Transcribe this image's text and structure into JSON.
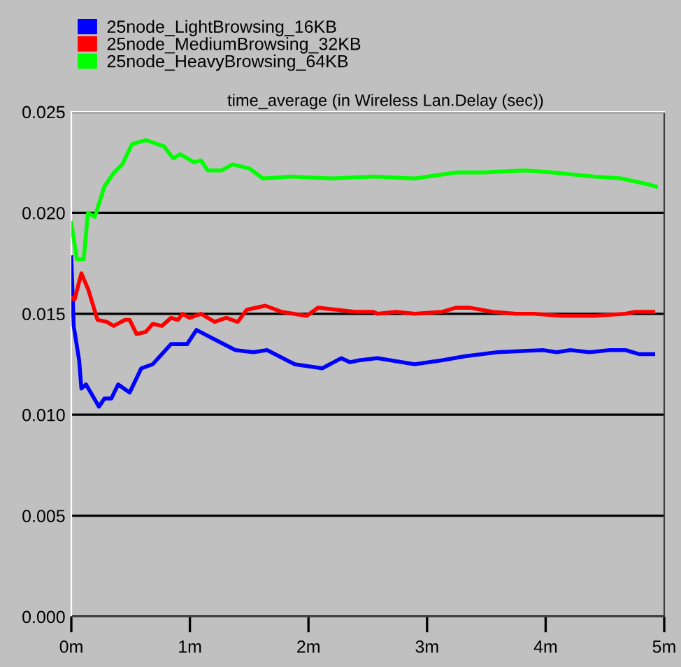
{
  "chart_data": {
    "type": "line",
    "title": "time_average (in Wireless Lan.Delay (sec))",
    "xlim": [
      0,
      5
    ],
    "xticks": [
      {
        "value": 0,
        "label": "0m"
      },
      {
        "value": 1,
        "label": "1m"
      },
      {
        "value": 2,
        "label": "2m"
      },
      {
        "value": 3,
        "label": "3m"
      },
      {
        "value": 4,
        "label": "4m"
      },
      {
        "value": 5,
        "label": "5m"
      }
    ],
    "ylim": [
      0,
      0.025
    ],
    "yticks": [
      {
        "value": 0,
        "label": "0.000"
      },
      {
        "value": 0.005,
        "label": "0.005"
      },
      {
        "value": 0.01,
        "label": "0.010"
      },
      {
        "value": 0.015,
        "label": "0.015"
      },
      {
        "value": 0.02,
        "label": "0.020"
      },
      {
        "value": 0.025,
        "label": "0.025"
      }
    ],
    "grid": "y",
    "legend": "top left",
    "marker": "none",
    "line_style": "solid",
    "series": [
      {
        "name": "25node_LightBrowsing_16KB",
        "color": "#0000ff",
        "x": [
          0,
          0.02,
          0.066,
          0.085,
          0.124,
          0.233,
          0.279,
          0.337,
          0.395,
          0.492,
          0.59,
          0.686,
          0.841,
          0.977,
          1.055,
          1.186,
          1.384,
          1.535,
          1.651,
          1.884,
          2.116,
          2.276,
          2.349,
          2.43,
          2.581,
          2.895,
          3.128,
          3.322,
          3.593,
          3.977,
          4.093,
          4.209,
          4.369,
          4.543,
          4.674,
          4.791,
          4.907
        ],
        "values": [
          0.0178,
          0.0144,
          0.0127,
          0.0113,
          0.0115,
          0.0104,
          0.0108,
          0.0108,
          0.0115,
          0.0111,
          0.0123,
          0.0125,
          0.0135,
          0.0135,
          0.0142,
          0.0138,
          0.0132,
          0.0131,
          0.0132,
          0.0125,
          0.0123,
          0.0128,
          0.0126,
          0.0127,
          0.0128,
          0.0125,
          0.0127,
          0.0129,
          0.0131,
          0.0132,
          0.0131,
          0.0132,
          0.0131,
          0.0132,
          0.0132,
          0.013,
          0.013
        ]
      },
      {
        "name": "25node_MediumBrowsing_32KB",
        "color": "#ff0000",
        "x": [
          0,
          0.027,
          0.085,
          0.143,
          0.221,
          0.299,
          0.357,
          0.453,
          0.492,
          0.55,
          0.628,
          0.686,
          0.764,
          0.841,
          0.899,
          0.938,
          0.997,
          1.093,
          1.209,
          1.306,
          1.403,
          1.48,
          1.636,
          1.771,
          1.985,
          2.081,
          2.236,
          2.392,
          2.547,
          2.581,
          2.74,
          2.895,
          3.128,
          3.244,
          3.36,
          3.555,
          3.748,
          3.903,
          4.136,
          4.407,
          4.674,
          4.756,
          4.907
        ],
        "values": [
          0.0158,
          0.0157,
          0.017,
          0.0162,
          0.0147,
          0.0146,
          0.0144,
          0.0147,
          0.0147,
          0.014,
          0.0141,
          0.0145,
          0.0144,
          0.0148,
          0.0147,
          0.015,
          0.0148,
          0.015,
          0.0146,
          0.0148,
          0.0146,
          0.0152,
          0.0154,
          0.0151,
          0.0149,
          0.0153,
          0.0152,
          0.0151,
          0.0151,
          0.015,
          0.0151,
          0.015,
          0.0151,
          0.0153,
          0.0153,
          0.0151,
          0.015,
          0.015,
          0.0149,
          0.0149,
          0.015,
          0.0151,
          0.0151
        ]
      },
      {
        "name": "25node_HeavyBrowsing_64KB",
        "color": "#00ff00",
        "x": [
          0,
          0.047,
          0.105,
          0.14,
          0.198,
          0.279,
          0.36,
          0.43,
          0.512,
          0.628,
          0.779,
          0.86,
          0.919,
          1.035,
          1.093,
          1.151,
          1.267,
          1.36,
          1.5,
          1.616,
          1.849,
          2.198,
          2.547,
          2.895,
          3.244,
          3.477,
          3.826,
          4.058,
          4.407,
          4.64,
          4.872,
          4.93
        ],
        "values": [
          0.0195,
          0.0177,
          0.0177,
          0.02,
          0.0198,
          0.0213,
          0.022,
          0.0224,
          0.0234,
          0.0236,
          0.0233,
          0.0227,
          0.0229,
          0.0225,
          0.0226,
          0.0221,
          0.0221,
          0.0224,
          0.0222,
          0.0217,
          0.0218,
          0.0217,
          0.0218,
          0.0217,
          0.022,
          0.022,
          0.0221,
          0.022,
          0.0218,
          0.0217,
          0.0214,
          0.0213
        ]
      }
    ]
  }
}
